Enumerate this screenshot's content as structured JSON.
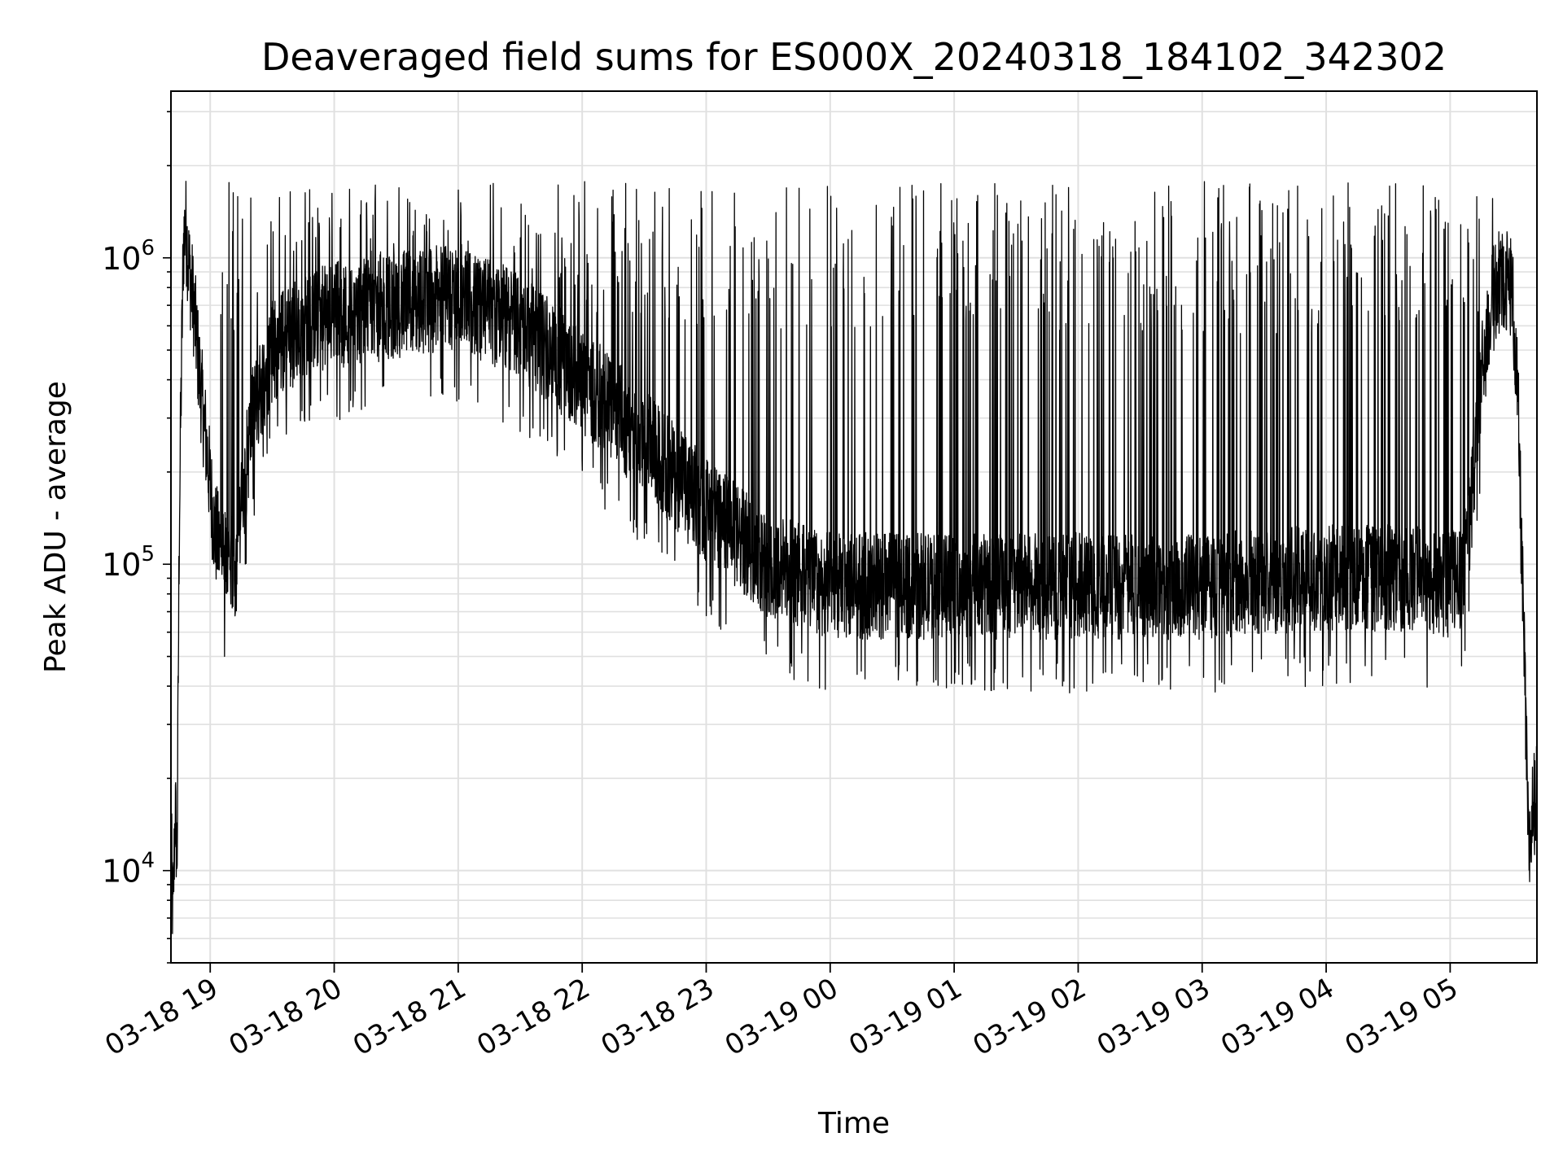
{
  "chart_data": {
    "type": "line",
    "title": "Deaveraged field sums for ES000X_20240318_184102_342302",
    "xlabel": "Time",
    "ylabel": "Peak ADU - average",
    "yscale": "log",
    "ylim": [
      5000,
      3500000
    ],
    "xlim": [
      "2024-03-18 18:41",
      "2024-03-19 05:42"
    ],
    "grid": true,
    "line_color": "#000000",
    "grid_color": "#e0e0e0",
    "x_ticks": [
      {
        "value": "2024-03-18 19:00",
        "label": "03-18 19"
      },
      {
        "value": "2024-03-18 20:00",
        "label": "03-18 20"
      },
      {
        "value": "2024-03-18 21:00",
        "label": "03-18 21"
      },
      {
        "value": "2024-03-18 22:00",
        "label": "03-18 22"
      },
      {
        "value": "2024-03-18 23:00",
        "label": "03-18 23"
      },
      {
        "value": "2024-03-19 00:00",
        "label": "03-19 00"
      },
      {
        "value": "2024-03-19 01:00",
        "label": "03-19 01"
      },
      {
        "value": "2024-03-19 02:00",
        "label": "03-19 02"
      },
      {
        "value": "2024-03-19 03:00",
        "label": "03-19 03"
      },
      {
        "value": "2024-03-19 04:00",
        "label": "03-19 04"
      },
      {
        "value": "2024-03-19 05:00",
        "label": "03-19 05"
      }
    ],
    "y_ticks": [
      {
        "value": 10000,
        "base": "10",
        "exp": "4"
      },
      {
        "value": 100000,
        "base": "10",
        "exp": "5"
      },
      {
        "value": 1000000,
        "base": "10",
        "exp": "6"
      }
    ],
    "series": [
      {
        "x": [
          "2024-03-18 18:41",
          "2024-03-18 18:42",
          "2024-03-18 18:43",
          "2024-03-18 18:44",
          "2024-03-18 18:45",
          "2024-03-18 18:46",
          "2024-03-18 18:47",
          "2024-03-18 18:48",
          "2024-03-18 18:50",
          "2024-03-18 18:52",
          "2024-03-18 18:55",
          "2024-03-18 18:58",
          "2024-03-18 19:00",
          "2024-03-18 19:02",
          "2024-03-18 19:05",
          "2024-03-18 19:08",
          "2024-03-18 19:12",
          "2024-03-18 19:20",
          "2024-03-18 19:30",
          "2024-03-18 19:45",
          "2024-03-18 20:00",
          "2024-03-18 20:30",
          "2024-03-18 21:00",
          "2024-03-18 21:30",
          "2024-03-18 22:00",
          "2024-03-18 22:30",
          "2024-03-18 23:00",
          "2024-03-18 23:30",
          "2024-03-19 00:00",
          "2024-03-19 01:00",
          "2024-03-19 02:00",
          "2024-03-19 03:00",
          "2024-03-19 04:00",
          "2024-03-19 04:45",
          "2024-03-19 05:00",
          "2024-03-19 05:05",
          "2024-03-19 05:10",
          "2024-03-19 05:15",
          "2024-03-19 05:20",
          "2024-03-19 05:25",
          "2024-03-19 05:30",
          "2024-03-19 05:33",
          "2024-03-19 05:36",
          "2024-03-19 05:38",
          "2024-03-19 05:40",
          "2024-03-19 05:42"
        ],
        "y": [
          13000,
          7000,
          16000,
          11000,
          130000,
          400000,
          1100000,
          1300000,
          900000,
          700000,
          400000,
          250000,
          180000,
          130000,
          110000,
          100000,
          95000,
          300000,
          500000,
          600000,
          650000,
          700000,
          750000,
          600000,
          400000,
          250000,
          150000,
          100000,
          85000,
          85000,
          85000,
          85000,
          90000,
          90000,
          85000,
          90000,
          150000,
          400000,
          700000,
          900000,
          800000,
          300000,
          45000,
          11000,
          16000,
          18000
        ]
      }
    ]
  }
}
